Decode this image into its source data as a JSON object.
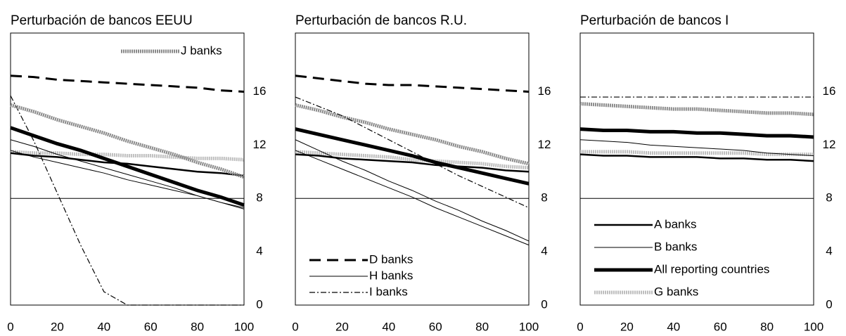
{
  "chart_data": [
    {
      "type": "line",
      "title": "Perturbación de bancos EEUU",
      "legend": "upper right",
      "x": [
        0,
        10,
        20,
        30,
        40,
        50,
        60,
        70,
        80,
        90,
        100
      ],
      "xlim": [
        0,
        100
      ],
      "xticks": [
        0,
        20,
        40,
        60,
        80,
        100
      ],
      "ylim": [
        0,
        20.4
      ],
      "yticks": [
        0,
        4,
        8,
        12,
        16
      ],
      "hline": 8,
      "series": [
        {
          "name": "J banks",
          "color": "#8a8a8a",
          "width": 5,
          "dash": "2 1",
          "values": [
            15.0,
            14.5,
            13.9,
            13.4,
            12.9,
            12.3,
            11.8,
            11.3,
            10.7,
            10.2,
            9.6
          ]
        },
        {
          "color": "#000",
          "width": 3,
          "dash": "16 9",
          "values": [
            17.2,
            17.1,
            16.9,
            16.8,
            16.7,
            16.6,
            16.5,
            16.4,
            16.3,
            16.1,
            16.0
          ]
        },
        {
          "color": "#000",
          "width": 5,
          "values": [
            13.3,
            12.7,
            12.1,
            11.6,
            11.0,
            10.4,
            9.8,
            9.2,
            8.6,
            8.1,
            7.5
          ]
        },
        {
          "color": "#000",
          "width": 2.5,
          "values": [
            11.4,
            11.2,
            11.1,
            10.9,
            10.7,
            10.6,
            10.4,
            10.2,
            10.0,
            9.9,
            9.7
          ]
        },
        {
          "color": "#000",
          "width": 1,
          "values": [
            12.4,
            11.9,
            11.3,
            10.8,
            10.3,
            9.8,
            9.3,
            8.8,
            8.2,
            7.7,
            7.2
          ]
        },
        {
          "color": "#000",
          "width": 1,
          "values": [
            11.6,
            11.1,
            10.7,
            10.3,
            9.9,
            9.4,
            9.0,
            8.6,
            8.2,
            7.7,
            7.3
          ]
        },
        {
          "color": "#bdbdbd",
          "width": 5,
          "dash": "2 1",
          "values": [
            11.5,
            11.4,
            11.4,
            11.3,
            11.3,
            11.2,
            11.2,
            11.1,
            11.0,
            11.0,
            10.9
          ]
        },
        {
          "color": "#000",
          "width": 1.2,
          "dash": "8 3 2 3",
          "values": [
            15.7,
            12.3,
            8.4,
            4.5,
            1.0,
            0,
            0,
            0,
            0,
            0,
            0
          ]
        }
      ]
    },
    {
      "type": "line",
      "title": "Perturbación de bancos R.U.",
      "legend": "lower left",
      "x": [
        0,
        10,
        20,
        30,
        40,
        50,
        60,
        70,
        80,
        90,
        100
      ],
      "xlim": [
        0,
        100
      ],
      "xticks": [
        0,
        20,
        40,
        60,
        80,
        100
      ],
      "ylim": [
        0,
        20.4
      ],
      "yticks": [
        0,
        4,
        8,
        12,
        16
      ],
      "hline": 8,
      "series": [
        {
          "name": "D banks",
          "color": "#000",
          "width": 3,
          "dash": "16 9",
          "values": [
            17.2,
            17.0,
            16.8,
            16.6,
            16.5,
            16.5,
            16.4,
            16.3,
            16.2,
            16.1,
            16.0
          ]
        },
        {
          "name": "H banks",
          "color": "#000",
          "width": 1,
          "values": [
            11.6,
            10.9,
            10.2,
            9.5,
            8.8,
            8.1,
            7.3,
            6.6,
            5.9,
            5.2,
            4.5
          ]
        },
        {
          "name": "I banks",
          "color": "#000",
          "width": 1.2,
          "dash": "8 3 2 3",
          "values": [
            15.6,
            14.9,
            14.2,
            13.3,
            12.4,
            11.5,
            10.6,
            9.7,
            8.9,
            8.1,
            7.3
          ]
        },
        {
          "color": "#8a8a8a",
          "width": 5,
          "dash": "2 1",
          "values": [
            15.0,
            14.6,
            14.1,
            13.7,
            13.2,
            12.8,
            12.4,
            11.9,
            11.5,
            11.0,
            10.6
          ]
        },
        {
          "color": "#000",
          "width": 5,
          "values": [
            13.2,
            12.8,
            12.4,
            12.0,
            11.6,
            11.2,
            10.7,
            10.3,
            9.9,
            9.5,
            9.1
          ]
        },
        {
          "color": "#000",
          "width": 1,
          "values": [
            12.4,
            11.6,
            10.8,
            10.1,
            9.3,
            8.6,
            7.8,
            7.1,
            6.3,
            5.6,
            4.8
          ]
        },
        {
          "color": "#000",
          "width": 2.5,
          "values": [
            11.3,
            11.2,
            11.0,
            10.9,
            10.8,
            10.7,
            10.5,
            10.4,
            10.3,
            10.1,
            10.0
          ]
        },
        {
          "color": "#bdbdbd",
          "width": 5,
          "dash": "2 1",
          "values": [
            11.5,
            11.4,
            11.3,
            11.2,
            11.1,
            10.9,
            10.8,
            10.7,
            10.6,
            10.4,
            10.3
          ]
        }
      ]
    },
    {
      "type": "line",
      "title": "Perturbación de bancos I",
      "legend": "lower left",
      "x": [
        0,
        10,
        20,
        30,
        40,
        50,
        60,
        70,
        80,
        90,
        100
      ],
      "xlim": [
        0,
        100
      ],
      "xticks": [
        0,
        20,
        40,
        60,
        80,
        100
      ],
      "ylim": [
        0,
        20.4
      ],
      "yticks": [
        0,
        4,
        8,
        12,
        16
      ],
      "hline": 8,
      "series": [
        {
          "name": "A banks",
          "color": "#000",
          "width": 2.5,
          "values": [
            11.3,
            11.2,
            11.2,
            11.1,
            11.1,
            11.1,
            11.0,
            11.0,
            10.9,
            10.9,
            10.8
          ]
        },
        {
          "name": "B banks",
          "color": "#000",
          "width": 1,
          "values": [
            12.4,
            12.3,
            12.2,
            12.0,
            11.9,
            11.8,
            11.7,
            11.6,
            11.4,
            11.3,
            11.2
          ]
        },
        {
          "name": "All reporting countries",
          "color": "#000",
          "width": 5,
          "values": [
            13.2,
            13.1,
            13.1,
            13.0,
            13.0,
            12.9,
            12.9,
            12.8,
            12.7,
            12.7,
            12.6
          ]
        },
        {
          "name": "G banks",
          "color": "#bdbdbd",
          "width": 5,
          "dash": "2 1",
          "values": [
            11.5,
            11.5,
            11.5,
            11.4,
            11.4,
            11.4,
            11.4,
            11.4,
            11.3,
            11.3,
            11.3
          ]
        },
        {
          "color": "#8a8a8a",
          "width": 5,
          "dash": "2 1",
          "values": [
            15.1,
            15.0,
            14.9,
            14.8,
            14.7,
            14.7,
            14.6,
            14.5,
            14.4,
            14.4,
            14.3
          ]
        },
        {
          "color": "#000",
          "width": 1.2,
          "dash": "8 3 2 3",
          "values": [
            15.6,
            15.6,
            15.6,
            15.6,
            15.6,
            15.6,
            15.6,
            15.6,
            15.6,
            15.6,
            15.6
          ]
        }
      ]
    }
  ]
}
